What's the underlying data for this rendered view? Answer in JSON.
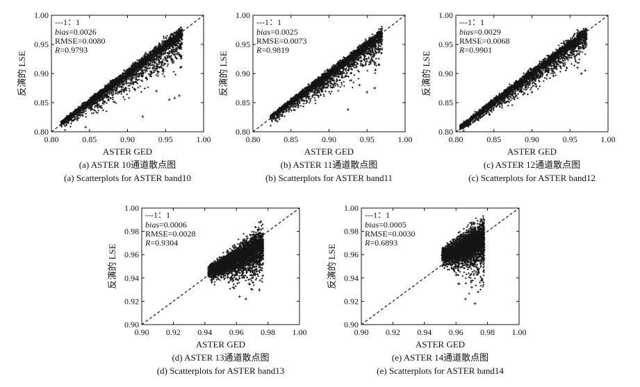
{
  "figure": {
    "colors": {
      "ink": "#111111",
      "points": "#141414",
      "background": "#ffffff"
    }
  },
  "chart_data": [
    {
      "id": "a",
      "type": "scatter",
      "xlabel": "ASTER GED",
      "ylabel": "反演的 LSE",
      "xlim": [
        0.8,
        1.0
      ],
      "ylim": [
        0.8,
        1.0
      ],
      "xticks": [
        "0.80",
        "0.85",
        "0.90",
        "0.95",
        "1.00"
      ],
      "yticks": [
        "0.80",
        "0.85",
        "0.90",
        "0.95",
        "1.00"
      ],
      "legend": "---1：1",
      "bias_label": "bias",
      "bias_value": "=0.0026",
      "rmse": "RMSE=0.0080",
      "r_label": "R",
      "r_value": "=0.9793",
      "caption_zh": "(a) ASTER 10通道散点图",
      "caption_en": "(a) Scatterplots for ASTER band10",
      "cloud": {
        "x_range": [
          0.812,
          0.972
        ],
        "slope": 0.975,
        "intercept": 0.023,
        "spread": 0.0035,
        "lower_tail": 0.018
      },
      "outliers": [
        [
          0.845,
          0.808
        ],
        [
          0.92,
          0.826
        ],
        [
          0.955,
          0.855
        ],
        [
          0.962,
          0.858
        ],
        [
          0.938,
          0.87
        ],
        [
          0.91,
          0.872
        ],
        [
          0.968,
          0.862
        ]
      ]
    },
    {
      "id": "b",
      "type": "scatter",
      "xlabel": "ASTER GED",
      "ylabel": "反演的 LSE",
      "xlim": [
        0.8,
        1.0
      ],
      "ylim": [
        0.8,
        1.0
      ],
      "xticks": [
        "0.80",
        "0.85",
        "0.90",
        "0.95",
        "1.00"
      ],
      "yticks": [
        "0.80",
        "0.85",
        "0.90",
        "0.95",
        "1.00"
      ],
      "legend": "---1：1",
      "bias_label": "bias",
      "bias_value": "=0.0025",
      "rmse": "RMSE=0.0073",
      "r_label": "R",
      "r_value": "=0.9819",
      "caption_zh": "(b) ASTER 11通道散点图",
      "caption_en": "(b) Scatterplots for ASTER band11",
      "cloud": {
        "x_range": [
          0.822,
          0.97
        ],
        "slope": 0.975,
        "intercept": 0.023,
        "spread": 0.0032,
        "lower_tail": 0.016
      },
      "outliers": [
        [
          0.925,
          0.838
        ],
        [
          0.832,
          0.818
        ],
        [
          0.95,
          0.868
        ],
        [
          0.96,
          0.875
        ],
        [
          0.94,
          0.88
        ]
      ]
    },
    {
      "id": "c",
      "type": "scatter",
      "xlabel": "ASTER GED",
      "ylabel": "反演的 LSE",
      "xlim": [
        0.8,
        1.0
      ],
      "ylim": [
        0.8,
        1.0
      ],
      "xticks": [
        "0.80",
        "0.85",
        "0.90",
        "0.95",
        "1.00"
      ],
      "yticks": [
        "0.80",
        "0.85",
        "0.90",
        "0.95",
        "1.00"
      ],
      "legend": "---1：1",
      "bias_label": "bias",
      "bias_value": "=0.0029",
      "rmse": "RMSE=0.0068",
      "r_label": "R",
      "r_value": "=0.9901",
      "caption_zh": "(c) ASTER 12通道散点图",
      "caption_en": "(c) Scatterplots for ASTER band12",
      "cloud": {
        "x_range": [
          0.805,
          0.972
        ],
        "slope": 0.975,
        "intercept": 0.023,
        "spread": 0.0033,
        "lower_tail": 0.012
      },
      "outliers": [
        [
          0.965,
          0.9
        ],
        [
          0.97,
          0.905
        ],
        [
          0.9,
          0.868
        ],
        [
          0.96,
          0.91
        ]
      ]
    },
    {
      "id": "d",
      "type": "scatter",
      "xlabel": "ASTER GED",
      "ylabel": "反演的 LSE",
      "xlim": [
        0.9,
        1.0
      ],
      "ylim": [
        0.9,
        1.0
      ],
      "xticks": [
        "0.90",
        "0.92",
        "0.94",
        "0.96",
        "0.98",
        "1.00"
      ],
      "yticks": [
        "0.90",
        "0.92",
        "0.94",
        "0.96",
        "0.98",
        "1.00"
      ],
      "legend": "---1：1",
      "bias_label": "bias",
      "bias_value": "=0.0006",
      "rmse": "RMSE=0.0028",
      "r_label": "R",
      "r_value": "=0.9304",
      "caption_zh": "(d) ASTER 13通道散点图",
      "caption_en": "(d) Scatterplots for ASTER band13",
      "cloud": {
        "x_range": [
          0.942,
          0.977
        ],
        "slope": 0.7,
        "intercept": 0.286,
        "spread": 0.0042,
        "lower_tail": 0.01
      },
      "outliers": [
        [
          0.962,
          0.924
        ],
        [
          0.966,
          0.922
        ],
        [
          0.97,
          0.93
        ],
        [
          0.968,
          0.935
        ],
        [
          0.975,
          0.938
        ],
        [
          0.958,
          0.932
        ]
      ]
    },
    {
      "id": "e",
      "type": "scatter",
      "xlabel": "ASTER GED",
      "ylabel": "反演的 LSE",
      "xlim": [
        0.9,
        1.0
      ],
      "ylim": [
        0.9,
        1.0
      ],
      "xticks": [
        "0.90",
        "0.92",
        "0.94",
        "0.96",
        "0.98",
        "1.00"
      ],
      "yticks": [
        "0.90",
        "0.92",
        "0.94",
        "0.96",
        "0.98",
        "1.00"
      ],
      "legend": "---1：1",
      "bias_label": "bias",
      "bias_value": "=0.0005",
      "rmse": "RMSE=0.0030",
      "r_label": "R",
      "r_value": "=0.6893",
      "caption_zh": "(e) ASTER 14通道散点图",
      "caption_en": "(e) Scatterplots for ASTER band14",
      "cloud": {
        "x_range": [
          0.951,
          0.978
        ],
        "slope": 0.55,
        "intercept": 0.437,
        "spread": 0.005,
        "lower_tail": 0.012
      },
      "outliers": [
        [
          0.966,
          0.922
        ],
        [
          0.972,
          0.918
        ],
        [
          0.974,
          0.928
        ],
        [
          0.97,
          0.932
        ],
        [
          0.962,
          0.935
        ],
        [
          0.976,
          0.938
        ]
      ]
    }
  ]
}
